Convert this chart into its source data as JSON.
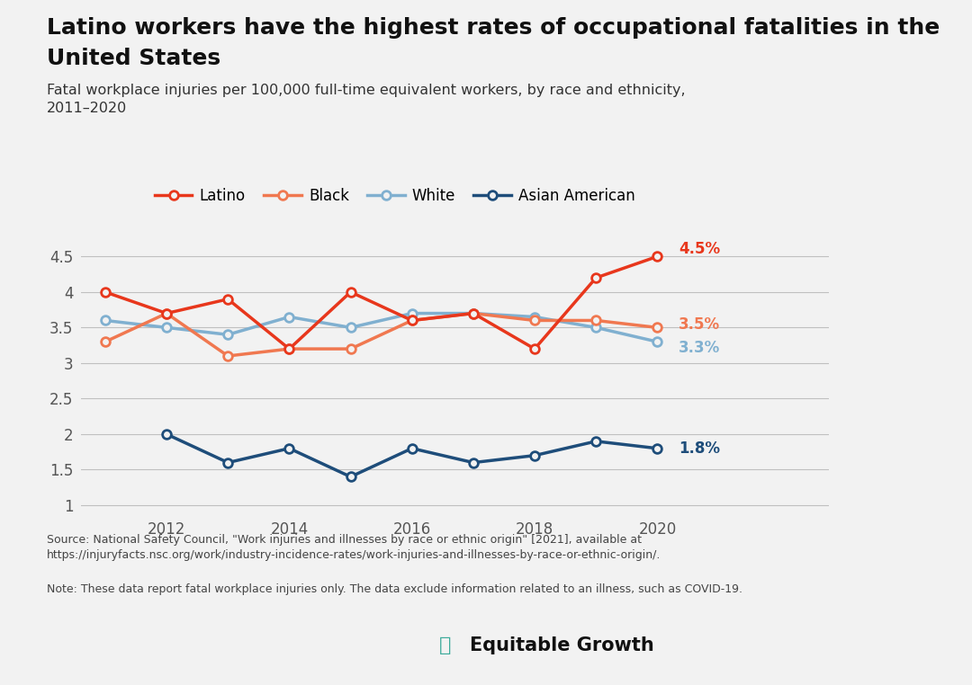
{
  "years": [
    2011,
    2012,
    2013,
    2014,
    2015,
    2016,
    2017,
    2018,
    2019,
    2020
  ],
  "latino": [
    4.0,
    3.7,
    3.9,
    3.2,
    4.0,
    3.6,
    3.7,
    3.2,
    4.2,
    4.5
  ],
  "black": [
    3.3,
    3.7,
    3.1,
    3.2,
    3.2,
    3.6,
    3.7,
    3.6,
    3.6,
    3.5
  ],
  "white": [
    3.6,
    3.5,
    3.4,
    3.65,
    3.5,
    3.7,
    3.7,
    3.65,
    3.5,
    3.3
  ],
  "asian": [
    null,
    2.0,
    1.6,
    1.8,
    1.4,
    1.8,
    1.6,
    1.7,
    1.9,
    1.8
  ],
  "latino_color": "#e8371c",
  "black_color": "#f07850",
  "white_color": "#80b0d0",
  "asian_color": "#1e4d7a",
  "title_line1": "Latino workers have the highest rates of occupational fatalities in the",
  "title_line2": "United States",
  "subtitle": "Fatal workplace injuries per 100,000 full-time equivalent workers, by race and ethnicity,\n2011–2020",
  "source_text": "Source: National Safety Council, \"Work injuries and illnesses by race or ethnic origin\" [2021], available at\nhttps://injuryfacts.nsc.org/work/industry-incidence-rates/work-injuries-and-illnesses-by-race-or-ethnic-origin/.",
  "note_text": "Note: These data report fatal workplace injuries only. The data exclude information related to an illness, such as COVID-19.",
  "bg_color": "#f2f2f2",
  "plot_bg_color": "#f2f2f2",
  "end_label_latino": "4.5%",
  "end_label_black": "3.5%",
  "end_label_white": "3.3%",
  "end_label_asian": "1.8%",
  "ylim": [
    0.88,
    4.88
  ],
  "yticks": [
    1.0,
    1.5,
    2.0,
    2.5,
    3.0,
    3.5,
    4.0,
    4.5
  ],
  "xticks": [
    2012,
    2014,
    2016,
    2018,
    2020
  ],
  "legend_labels": [
    "Latino",
    "Black",
    "White",
    "Asian American"
  ]
}
